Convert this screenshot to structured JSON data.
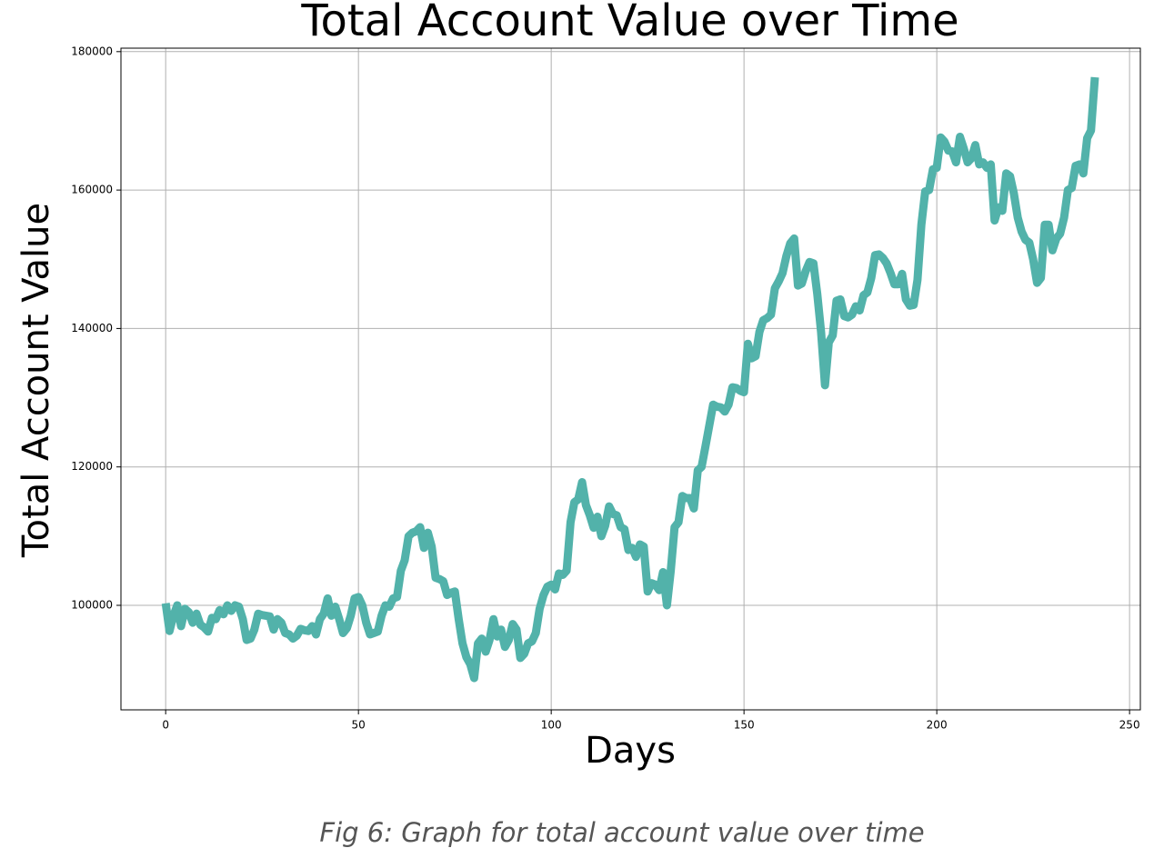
{
  "chart_data": {
    "type": "line",
    "title": "Total Account Value over Time",
    "xlabel": "Days",
    "ylabel": "Total Account Value",
    "caption": "Fig 6: Graph for total account value over time",
    "x": [
      0,
      1,
      2,
      3,
      4,
      5,
      6,
      7,
      8,
      9,
      10,
      11,
      12,
      13,
      14,
      15,
      16,
      17,
      18,
      19,
      20,
      21,
      22,
      23,
      24,
      25,
      26,
      27,
      28,
      29,
      30,
      31,
      32,
      33,
      34,
      35,
      36,
      37,
      38,
      39,
      40,
      41,
      42,
      43,
      44,
      45,
      46,
      47,
      48,
      49,
      50,
      51,
      52,
      53,
      54,
      55,
      56,
      57,
      58,
      59,
      60,
      61,
      62,
      63,
      64,
      65,
      66,
      67,
      68,
      69,
      70,
      71,
      72,
      73,
      74,
      75,
      76,
      77,
      78,
      79,
      80,
      81,
      82,
      83,
      84,
      85,
      86,
      87,
      88,
      89,
      90,
      91,
      92,
      93,
      94,
      95,
      96,
      97,
      98,
      99,
      100,
      101,
      102,
      103,
      104,
      105,
      106,
      107,
      108,
      109,
      110,
      111,
      112,
      113,
      114,
      115,
      116,
      117,
      118,
      119,
      120,
      121,
      122,
      123,
      124,
      125,
      126,
      127,
      128,
      129,
      130,
      131,
      132,
      133,
      134,
      135,
      136,
      137,
      138,
      139,
      140,
      141,
      142,
      143,
      144,
      145,
      146,
      147,
      148,
      149,
      150,
      151,
      152,
      153,
      154,
      155,
      156,
      157,
      158,
      159,
      160,
      161,
      162,
      163,
      164,
      165,
      166,
      167,
      168,
      169,
      170,
      171,
      172,
      173,
      174,
      175,
      176,
      177,
      178,
      179,
      180,
      181,
      182,
      183,
      184,
      185,
      186,
      187,
      188,
      189,
      190,
      191,
      192,
      193,
      194,
      195,
      196,
      197,
      198,
      199,
      200,
      201,
      202,
      203,
      204,
      205,
      206,
      207,
      208,
      209,
      210,
      211,
      212,
      213,
      214,
      215,
      216,
      217,
      218,
      219,
      220,
      221,
      222,
      223,
      224,
      225,
      226,
      227,
      228,
      229,
      230,
      231,
      232,
      233,
      234,
      235,
      236,
      237,
      238,
      239,
      240,
      241
    ],
    "series": [
      {
        "name": "Total Account Value",
        "color": "#52b2aa",
        "values": [
          100300,
          96300,
          98500,
          100000,
          97000,
          99500,
          99000,
          97500,
          98800,
          97200,
          96800,
          96200,
          98200,
          98000,
          99300,
          98700,
          100000,
          99200,
          100000,
          99800,
          98000,
          95000,
          95200,
          96500,
          98800,
          98600,
          98500,
          98400,
          96500,
          98000,
          97500,
          96000,
          95800,
          95200,
          95600,
          96600,
          96400,
          96300,
          97000,
          95800,
          98000,
          98800,
          101000,
          98500,
          99800,
          98000,
          96000,
          96700,
          98500,
          101000,
          101200,
          100000,
          97500,
          95800,
          96000,
          96200,
          98500,
          100000,
          99800,
          101000,
          101200,
          105000,
          106500,
          110000,
          110500,
          110700,
          111300,
          108300,
          110500,
          108500,
          104000,
          103800,
          103500,
          101500,
          101800,
          102000,
          98000,
          94500,
          92500,
          91500,
          89500,
          94500,
          95200,
          93300,
          95000,
          98000,
          95500,
          96500,
          94000,
          95000,
          97300,
          96500,
          92400,
          93000,
          94500,
          94800,
          96000,
          99500,
          101500,
          102700,
          103000,
          102300,
          104600,
          104400,
          105000,
          112000,
          114900,
          115300,
          117800,
          114500,
          113000,
          111200,
          112800,
          110000,
          111500,
          114300,
          113200,
          113000,
          111300,
          111000,
          108000,
          108300,
          107000,
          108800,
          108500,
          102000,
          103200,
          103000,
          102200,
          104800,
          100000,
          105000,
          111300,
          112000,
          115800,
          115500,
          115500,
          114000,
          119500,
          120000,
          123000,
          126000,
          129000,
          128700,
          128600,
          128000,
          129000,
          131500,
          131400,
          131000,
          130800,
          137800,
          135700,
          136000,
          139500,
          141200,
          141500,
          142000,
          145800,
          146800,
          148000,
          150500,
          152300,
          153000,
          146200,
          146500,
          148300,
          149600,
          149400,
          145000,
          139500,
          131800,
          138000,
          139000,
          144000,
          144200,
          141800,
          141600,
          142000,
          143200,
          142600,
          144800,
          145200,
          147300,
          150600,
          150700,
          150200,
          149400,
          148000,
          146400,
          146400,
          147900,
          144200,
          143300,
          143400,
          147000,
          155000,
          159800,
          160000,
          163000,
          163200,
          167600,
          167000,
          165700,
          165600,
          164000,
          167700,
          166000,
          164000,
          164600,
          166500,
          163700,
          164000,
          163200,
          163700,
          155600,
          157500,
          157000,
          162400,
          162000,
          159500,
          156000,
          154000,
          152800,
          152400,
          150000,
          146600,
          147300,
          155000,
          155000,
          151300,
          153000,
          153700,
          156000,
          160000,
          160300,
          163500,
          163700,
          162400,
          167500,
          168600,
          176300
        ]
      }
    ],
    "xlim": [
      -11.6,
      252.8
    ],
    "xticks": [
      0,
      50,
      100,
      150,
      200,
      250
    ],
    "ylim": [
      84900,
      180500
    ],
    "yticks": [
      100000,
      120000,
      140000,
      160000,
      180000
    ],
    "grid": true
  }
}
